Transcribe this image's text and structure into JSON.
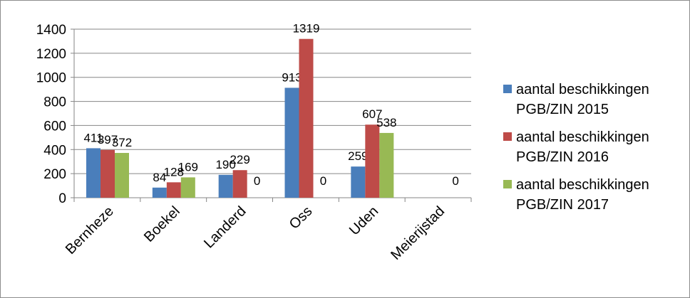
{
  "chart_data": {
    "type": "bar",
    "categories": [
      "Bernheze",
      "Boekel",
      "Landerd",
      "Oss",
      "Uden",
      "Meierijstad"
    ],
    "series": [
      {
        "name": "aantal beschikkingen PGB/ZIN 2015",
        "color": "#4a7ebb",
        "values": [
          411,
          84,
          190,
          913,
          259,
          null
        ],
        "labels": [
          "411",
          "84",
          "190",
          "913",
          "259",
          ""
        ]
      },
      {
        "name": "aantal beschikkingen PGB/ZIN 2016",
        "color": "#be4b48",
        "values": [
          397,
          128,
          229,
          1319,
          607,
          null
        ],
        "labels": [
          "397",
          "128",
          "229",
          "1319",
          "607",
          ""
        ]
      },
      {
        "name": "aantal beschikkingen PGB/ZIN 2017",
        "color": "#98b954",
        "values": [
          372,
          169,
          0,
          0,
          538,
          0
        ],
        "labels": [
          "372",
          "169",
          "0",
          "0",
          "538",
          "0"
        ]
      }
    ],
    "ylim": [
      0,
      1400
    ],
    "yticks": [
      "0",
      "200",
      "400",
      "600",
      "800",
      "1000",
      "1200",
      "1400"
    ],
    "grid": true,
    "legend_position": "right"
  }
}
